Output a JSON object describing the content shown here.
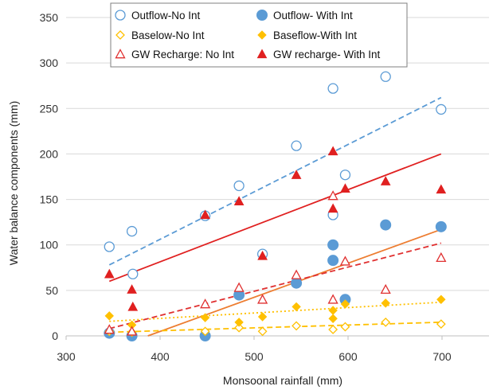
{
  "chart_data": {
    "type": "scatter",
    "title": "",
    "xlabel": "Monsoonal rainfall (mm)",
    "ylabel": "Water balance components (mm)",
    "xlim": [
      300,
      750
    ],
    "ylim": [
      0,
      350
    ],
    "xticks": [
      300,
      400,
      500,
      600,
      700
    ],
    "yticks": [
      0,
      50,
      100,
      150,
      200,
      250,
      300,
      350
    ],
    "grid": "horizontal",
    "legend_position": "top",
    "series": [
      {
        "name": "Outflow-No Int",
        "marker": "circle-open",
        "color": "#5b9bd5",
        "points": [
          [
            346,
            98
          ],
          [
            370,
            115
          ],
          [
            371,
            68
          ],
          [
            448,
            132
          ],
          [
            484,
            165
          ],
          [
            509,
            90
          ],
          [
            545,
            209
          ],
          [
            584,
            272
          ],
          [
            584,
            133
          ],
          [
            597,
            177
          ],
          [
            640,
            285
          ],
          [
            699,
            249
          ]
        ],
        "trend": {
          "style": "dashed",
          "x": [
            346,
            699
          ],
          "y": [
            78,
            262
          ]
        }
      },
      {
        "name": "Outflow- With Int",
        "marker": "circle-filled",
        "color": "#5b9bd5",
        "points": [
          [
            346,
            3
          ],
          [
            370,
            0
          ],
          [
            448,
            0
          ],
          [
            484,
            45
          ],
          [
            545,
            58
          ],
          [
            584,
            100
          ],
          [
            584,
            83
          ],
          [
            597,
            40
          ],
          [
            640,
            122
          ],
          [
            699,
            120
          ]
        ],
        "trend": {
          "style": "solid",
          "color": "#ed7d31",
          "x": [
            387,
            699
          ],
          "y": [
            0,
            117
          ]
        }
      },
      {
        "name": "Baselow-No Int",
        "marker": "diamond-open",
        "color": "#ffc000",
        "points": [
          [
            346,
            5
          ],
          [
            370,
            4
          ],
          [
            448,
            5
          ],
          [
            484,
            9
          ],
          [
            509,
            5
          ],
          [
            545,
            11
          ],
          [
            584,
            7
          ],
          [
            597,
            10
          ],
          [
            640,
            15
          ],
          [
            699,
            13
          ]
        ],
        "trend": {
          "style": "dashed",
          "x": [
            346,
            699
          ],
          "y": [
            4,
            15
          ]
        }
      },
      {
        "name": "Baseflow-With Int",
        "marker": "diamond-filled",
        "color": "#ffc000",
        "points": [
          [
            346,
            22
          ],
          [
            370,
            12
          ],
          [
            448,
            20
          ],
          [
            484,
            15
          ],
          [
            509,
            21
          ],
          [
            545,
            32
          ],
          [
            584,
            28
          ],
          [
            584,
            19
          ],
          [
            597,
            35
          ],
          [
            640,
            36
          ],
          [
            699,
            40
          ]
        ],
        "trend": {
          "style": "dotted",
          "x": [
            346,
            699
          ],
          "y": [
            16,
            37
          ]
        }
      },
      {
        "name": "GW Recharge: No Int",
        "marker": "triangle-open",
        "color": "#e03030",
        "points": [
          [
            346,
            7
          ],
          [
            370,
            5
          ],
          [
            448,
            35
          ],
          [
            484,
            53
          ],
          [
            509,
            40
          ],
          [
            545,
            67
          ],
          [
            584,
            154
          ],
          [
            584,
            40
          ],
          [
            597,
            82
          ],
          [
            640,
            51
          ],
          [
            699,
            86
          ]
        ],
        "trend": {
          "style": "dashed",
          "x": [
            346,
            699
          ],
          "y": [
            8,
            102
          ]
        }
      },
      {
        "name": "GW recharge- With Int",
        "marker": "triangle-filled",
        "color": "#e02020",
        "points": [
          [
            346,
            68
          ],
          [
            370,
            51
          ],
          [
            371,
            32
          ],
          [
            448,
            133
          ],
          [
            484,
            148
          ],
          [
            509,
            88
          ],
          [
            545,
            177
          ],
          [
            584,
            203
          ],
          [
            584,
            140
          ],
          [
            597,
            162
          ],
          [
            640,
            170
          ],
          [
            699,
            161
          ]
        ],
        "trend": {
          "style": "solid",
          "x": [
            346,
            699
          ],
          "y": [
            60,
            200
          ]
        }
      }
    ]
  }
}
